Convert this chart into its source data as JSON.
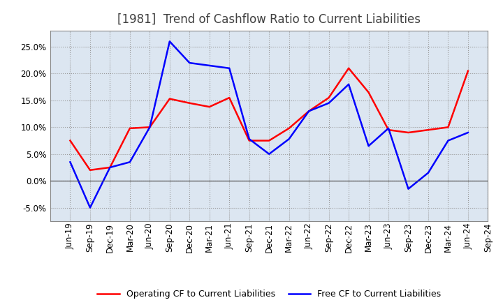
{
  "title": "[1981]  Trend of Cashflow Ratio to Current Liabilities",
  "x_labels": [
    "Jun-19",
    "Sep-19",
    "Dec-19",
    "Mar-20",
    "Jun-20",
    "Sep-20",
    "Dec-20",
    "Mar-21",
    "Jun-21",
    "Sep-21",
    "Dec-21",
    "Mar-22",
    "Jun-22",
    "Sep-22",
    "Dec-22",
    "Mar-23",
    "Jun-23",
    "Sep-23",
    "Dec-23",
    "Mar-24",
    "Jun-24",
    "Sep-24"
  ],
  "operating_cf": [
    7.5,
    2.0,
    2.5,
    9.8,
    10.0,
    15.3,
    14.5,
    13.8,
    15.5,
    7.5,
    7.5,
    9.8,
    13.0,
    15.5,
    21.0,
    16.5,
    9.5,
    9.0,
    9.5,
    10.0,
    20.5,
    null
  ],
  "free_cf": [
    3.5,
    -5.0,
    2.5,
    3.5,
    10.0,
    26.0,
    22.0,
    21.5,
    21.0,
    7.8,
    5.0,
    7.8,
    13.0,
    14.5,
    18.0,
    6.5,
    9.8,
    -1.5,
    1.5,
    7.5,
    9.0,
    null
  ],
  "operating_cf_color": "#ff0000",
  "free_cf_color": "#0000ff",
  "legend_operating": "Operating CF to Current Liabilities",
  "legend_free": "Free CF to Current Liabilities",
  "ylim": [
    -7.5,
    28.0
  ],
  "yticks": [
    -5.0,
    0.0,
    5.0,
    10.0,
    15.0,
    20.0,
    25.0
  ],
  "background_color": "#ffffff",
  "plot_bg_color": "#dce6f1",
  "grid_color": "#999999",
  "title_fontsize": 12,
  "title_color": "#404040",
  "axis_fontsize": 8.5
}
